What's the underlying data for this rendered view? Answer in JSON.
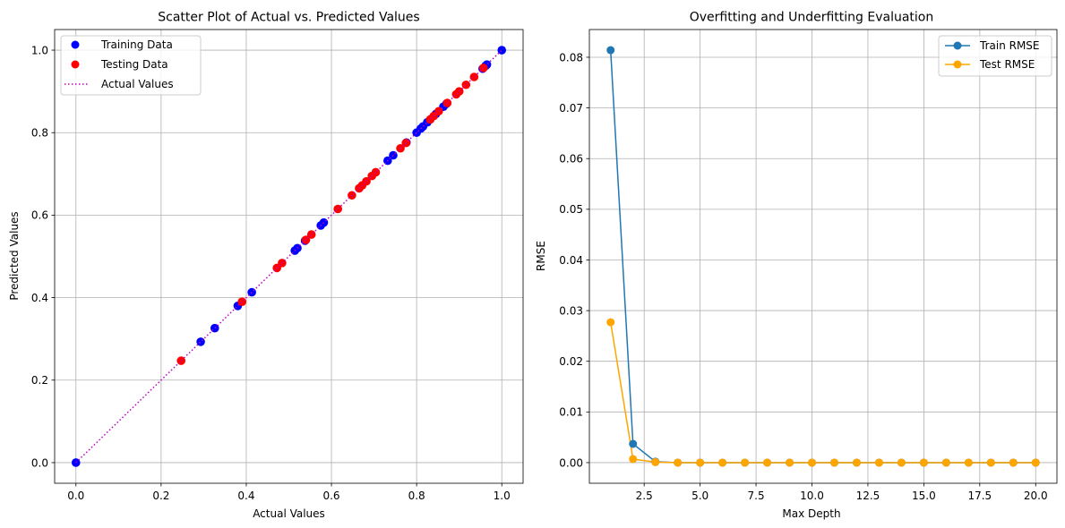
{
  "colors": {
    "train_scatter": "#0000ff",
    "test_scatter": "#ff0000",
    "identity_line": "#bf00bf",
    "train_rmse": "#1f77b4",
    "test_rmse": "#ffa500",
    "grid": "#b0b0b0"
  },
  "chart_data": [
    {
      "type": "scatter",
      "title": "Scatter Plot of Actual vs. Predicted Values",
      "xlabel": "Actual Values",
      "ylabel": "Predicted Values",
      "xlim": [
        -0.05,
        1.05
      ],
      "ylim": [
        -0.05,
        1.05
      ],
      "xticks": [
        0.0,
        0.2,
        0.4,
        0.6,
        0.8,
        1.0
      ],
      "yticks": [
        0.0,
        0.2,
        0.4,
        0.6,
        0.8,
        1.0
      ],
      "xtick_labels": [
        "0.0",
        "0.2",
        "0.4",
        "0.6",
        "0.8",
        "1.0"
      ],
      "ytick_labels": [
        "0.0",
        "0.2",
        "0.4",
        "0.6",
        "0.8",
        "1.0"
      ],
      "grid": true,
      "legend_position": "top-left",
      "series": [
        {
          "name": "Training Data",
          "kind": "scatter",
          "x": [
            0.0,
            0.293,
            0.326,
            0.38,
            0.413,
            0.514,
            0.52,
            0.538,
            0.575,
            0.582,
            0.732,
            0.745,
            0.776,
            0.8,
            0.81,
            0.815,
            0.825,
            0.845,
            0.863,
            0.87,
            0.955,
            0.962,
            0.965,
            1.0
          ],
          "y": [
            0.0,
            0.293,
            0.326,
            0.38,
            0.413,
            0.514,
            0.52,
            0.538,
            0.575,
            0.582,
            0.732,
            0.745,
            0.776,
            0.8,
            0.81,
            0.815,
            0.825,
            0.845,
            0.863,
            0.87,
            0.955,
            0.962,
            0.965,
            1.0
          ]
        },
        {
          "name": "Testing Data",
          "kind": "scatter",
          "x": [
            0.247,
            0.39,
            0.472,
            0.484,
            0.54,
            0.553,
            0.615,
            0.648,
            0.665,
            0.672,
            0.682,
            0.695,
            0.704,
            0.762,
            0.775,
            0.832,
            0.84,
            0.852,
            0.872,
            0.893,
            0.9,
            0.916,
            0.935,
            0.957
          ],
          "y": [
            0.247,
            0.39,
            0.472,
            0.484,
            0.54,
            0.553,
            0.615,
            0.648,
            0.665,
            0.672,
            0.682,
            0.695,
            0.704,
            0.762,
            0.775,
            0.832,
            0.84,
            0.852,
            0.872,
            0.893,
            0.9,
            0.916,
            0.935,
            0.957
          ]
        },
        {
          "name": "Actual Values",
          "kind": "line",
          "style": "dotted",
          "x": [
            0.0,
            1.0
          ],
          "y": [
            0.0,
            1.0
          ]
        }
      ]
    },
    {
      "type": "line",
      "title": "Overfitting and Underfitting Evaluation",
      "xlabel": "Max Depth",
      "ylabel": "RMSE",
      "xlim": [
        0.05,
        20.95
      ],
      "ylim": [
        -0.00407,
        0.08547
      ],
      "xticks": [
        2.5,
        5.0,
        7.5,
        10.0,
        12.5,
        15.0,
        17.5,
        20.0
      ],
      "yticks": [
        0.0,
        0.01,
        0.02,
        0.03,
        0.04,
        0.05,
        0.06,
        0.07,
        0.08
      ],
      "xtick_labels": [
        "2.5",
        "5.0",
        "7.5",
        "10.0",
        "12.5",
        "15.0",
        "17.5",
        "20.0"
      ],
      "ytick_labels": [
        "0.00",
        "0.01",
        "0.02",
        "0.03",
        "0.04",
        "0.05",
        "0.06",
        "0.07",
        "0.08"
      ],
      "grid": true,
      "legend_position": "top-right",
      "x": [
        1,
        2,
        3,
        4,
        5,
        6,
        7,
        8,
        9,
        10,
        11,
        12,
        13,
        14,
        15,
        16,
        17,
        18,
        19,
        20
      ],
      "series": [
        {
          "name": "Train RMSE",
          "values": [
            0.0814,
            0.0037,
            0.0002,
            0,
            0,
            0,
            0,
            0,
            0,
            0,
            0,
            0,
            0,
            0,
            0,
            0,
            0,
            0,
            0,
            0
          ]
        },
        {
          "name": "Test RMSE",
          "values": [
            0.0277,
            0.0007,
            0.0001,
            0,
            0,
            0,
            0,
            0,
            0,
            0,
            0,
            0,
            0,
            0,
            0,
            0,
            0,
            0,
            0,
            0
          ]
        }
      ]
    }
  ]
}
